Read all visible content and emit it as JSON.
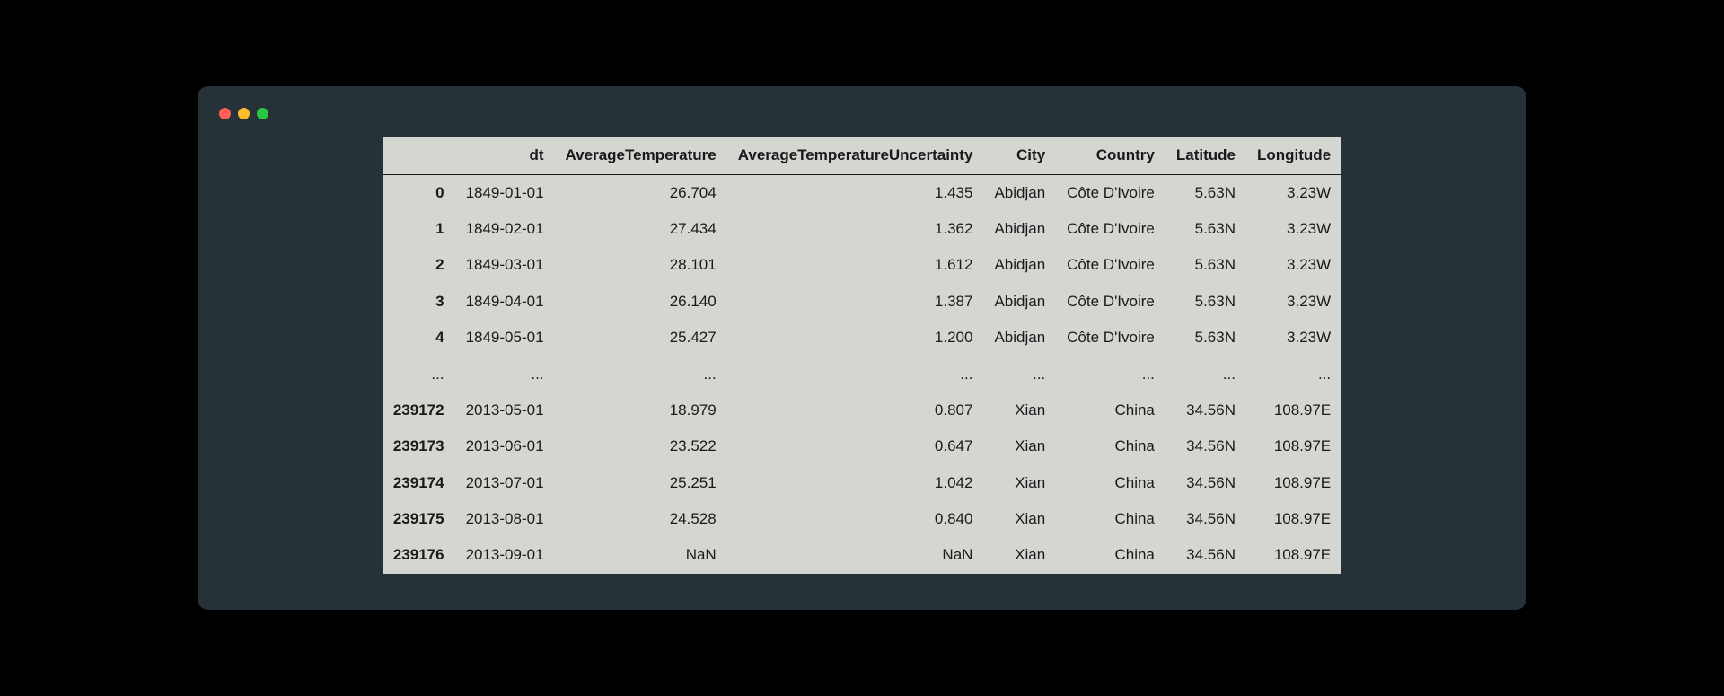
{
  "window": {
    "background_color": "#263238",
    "traffic_light_colors": {
      "close": "#ff5f56",
      "minimize": "#ffbd2e",
      "zoom": "#27c93f"
    }
  },
  "dataframe": {
    "type": "table",
    "background_color": "#d4d6d2",
    "text_color": "#1a1a1a",
    "header_border_color": "#1a1a1a",
    "font_size_pt": 13,
    "columns": [
      "dt",
      "AverageTemperature",
      "AverageTemperatureUncertainty",
      "City",
      "Country",
      "Latitude",
      "Longitude"
    ],
    "index": [
      "0",
      "1",
      "2",
      "3",
      "4",
      "...",
      "239172",
      "239173",
      "239174",
      "239175",
      "239176"
    ],
    "rows": [
      [
        "1849-01-01",
        "26.704",
        "1.435",
        "Abidjan",
        "Côte D'Ivoire",
        "5.63N",
        "3.23W"
      ],
      [
        "1849-02-01",
        "27.434",
        "1.362",
        "Abidjan",
        "Côte D'Ivoire",
        "5.63N",
        "3.23W"
      ],
      [
        "1849-03-01",
        "28.101",
        "1.612",
        "Abidjan",
        "Côte D'Ivoire",
        "5.63N",
        "3.23W"
      ],
      [
        "1849-04-01",
        "26.140",
        "1.387",
        "Abidjan",
        "Côte D'Ivoire",
        "5.63N",
        "3.23W"
      ],
      [
        "1849-05-01",
        "25.427",
        "1.200",
        "Abidjan",
        "Côte D'Ivoire",
        "5.63N",
        "3.23W"
      ],
      [
        "...",
        "...",
        "...",
        "...",
        "...",
        "...",
        "..."
      ],
      [
        "2013-05-01",
        "18.979",
        "0.807",
        "Xian",
        "China",
        "34.56N",
        "108.97E"
      ],
      [
        "2013-06-01",
        "23.522",
        "0.647",
        "Xian",
        "China",
        "34.56N",
        "108.97E"
      ],
      [
        "2013-07-01",
        "25.251",
        "1.042",
        "Xian",
        "China",
        "34.56N",
        "108.97E"
      ],
      [
        "2013-08-01",
        "24.528",
        "0.840",
        "Xian",
        "China",
        "34.56N",
        "108.97E"
      ],
      [
        "2013-09-01",
        "NaN",
        "NaN",
        "Xian",
        "China",
        "34.56N",
        "108.97E"
      ]
    ]
  }
}
